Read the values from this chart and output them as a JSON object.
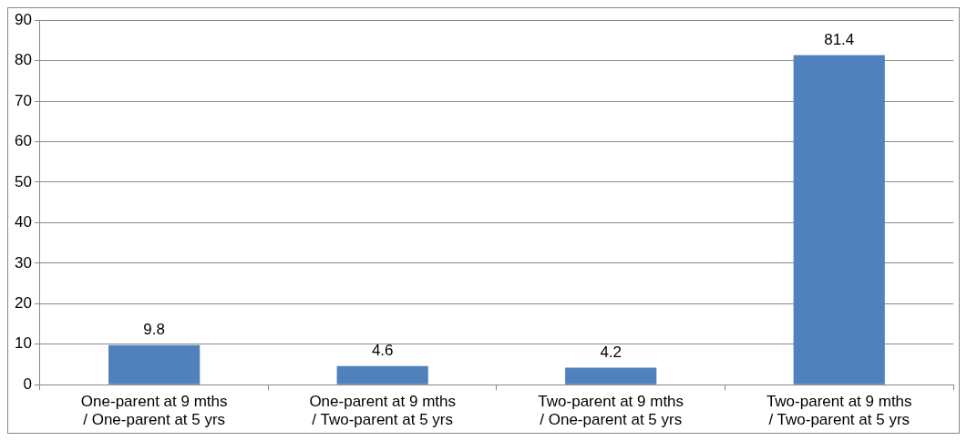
{
  "chart_data": {
    "type": "bar",
    "categories": [
      "One-parent at 9 mths\n/ One-parent at 5 yrs",
      "One-parent at 9 mths\n/ Two-parent at 5 yrs",
      "Two-parent at 9 mths\n/ One-parent at 5 yrs",
      "Two-parent at 9 mths\n/ Two-parent at 5 yrs"
    ],
    "values": [
      9.8,
      4.6,
      4.2,
      81.4
    ],
    "color": "#4f81bd",
    "ylim": [
      0,
      90
    ],
    "yticks": [
      0,
      10,
      20,
      30,
      40,
      50,
      60,
      70,
      80,
      90
    ],
    "grid": "y",
    "legend": false,
    "data_labels": true
  }
}
